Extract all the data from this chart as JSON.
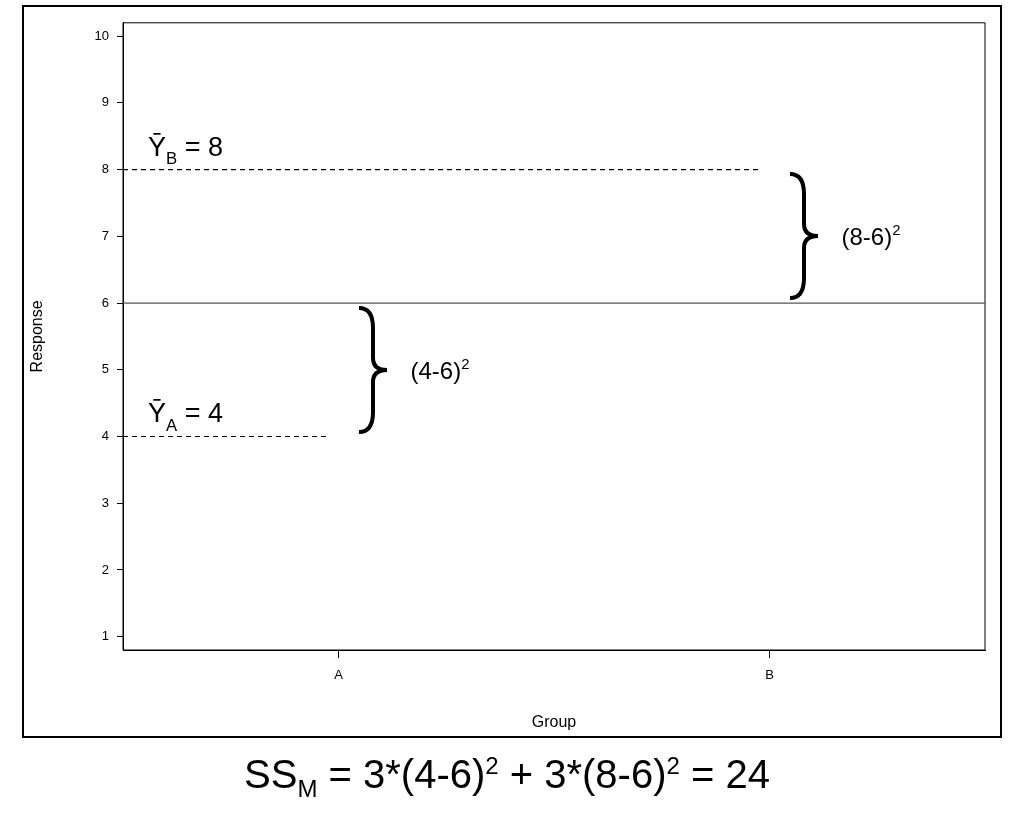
{
  "chart_data": {
    "type": "line",
    "xlabel": "Group",
    "ylabel": "Response",
    "categories": [
      "A",
      "B"
    ],
    "ylim": [
      0.8,
      10.2
    ],
    "yticks": [
      1,
      2,
      3,
      4,
      5,
      6,
      7,
      8,
      9,
      10
    ],
    "ref_lines": [
      {
        "axis": "y",
        "value": 4,
        "label": "Ȳ$_{A}$ = 4",
        "line_style": "dashed",
        "color": "#000000"
      },
      {
        "axis": "y",
        "value": 8,
        "label": "Ȳ$_{B}$ = 8",
        "line_style": "dashed",
        "color": "#000000"
      },
      {
        "axis": "y",
        "value": 6,
        "line_style": "solid",
        "color": "#555555"
      }
    ],
    "annotations": [
      "(4-6)$^{2}$",
      "(8-6)$^{2}$",
      "SS$_{M}$ = 3*(4-6)$^{2}$ + 3*(8-6)$^{2}$ = 24"
    ]
  }
}
